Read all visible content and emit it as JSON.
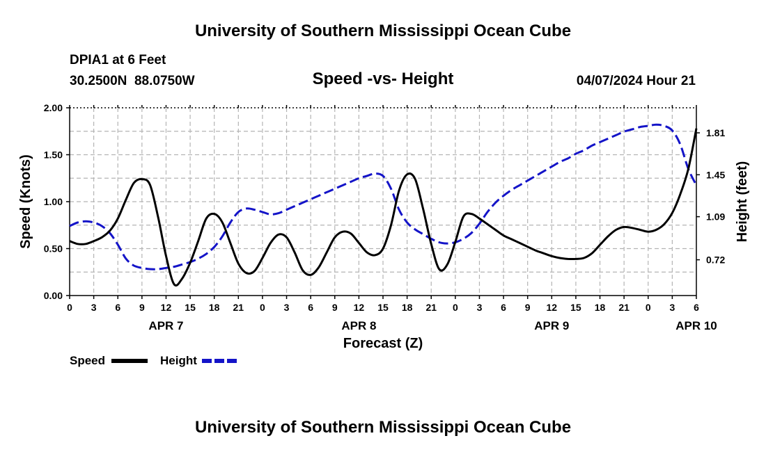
{
  "header": {
    "title": "University of Southern Mississippi Ocean Cube",
    "station_name": "DPIA1 at 6 Feet",
    "coordinates": "30.2500N  88.0750W",
    "chart_title": "Speed -vs- Height",
    "datetime": "04/07/2024 Hour 21"
  },
  "footer": {
    "title": "University of Southern Mississippi Ocean Cube"
  },
  "colors": {
    "speed": "#000000",
    "height": "#1414c8",
    "grid": "#b4b4b4"
  },
  "chart_data": {
    "type": "line",
    "title": "Speed -vs- Height",
    "xlabel": "Forecast (Z)",
    "ylabel_left": "Speed (Knots)",
    "ylabel_right": "Height (feet)",
    "x_range_hours": [
      0,
      78
    ],
    "ylim_left": [
      0,
      2.0
    ],
    "ylim_right_ft": [
      0.413,
      2.025
    ],
    "yticks_left": [
      "0.00",
      "0.50",
      "1.00",
      "1.50",
      "2.00"
    ],
    "yticks_left_values": [
      0,
      0.5,
      1.0,
      1.5,
      2.0
    ],
    "yticks_right": [
      "0.72",
      "1.09",
      "1.45",
      "1.81"
    ],
    "yticks_right_values": [
      0.72,
      1.09,
      1.45,
      1.81
    ],
    "xtick_labels": [
      "0",
      "3",
      "6",
      "9",
      "12",
      "15",
      "18",
      "21",
      "0",
      "3",
      "6",
      "9",
      "12",
      "15",
      "18",
      "21",
      "0",
      "3",
      "6",
      "9",
      "12",
      "15",
      "18",
      "21",
      "0",
      "3",
      "6"
    ],
    "day_labels": [
      {
        "label": "APR 7",
        "hour": 12
      },
      {
        "label": "APR 8",
        "hour": 36
      },
      {
        "label": "APR 9",
        "hour": 60
      },
      {
        "label": "APR 10",
        "hour": 78
      }
    ],
    "legend": [
      "Speed",
      "Height"
    ],
    "series": [
      {
        "name": "Speed",
        "x": [
          0,
          1,
          2,
          3,
          4,
          5,
          6,
          7,
          8,
          9,
          10,
          11,
          12,
          13,
          14,
          15,
          16,
          17,
          18,
          19,
          20,
          21,
          22,
          23,
          24,
          25,
          26,
          27,
          28,
          29,
          30,
          31,
          32,
          33,
          34,
          35,
          36,
          37,
          38,
          39,
          40,
          41,
          42,
          43,
          44,
          45,
          46,
          47,
          48,
          49,
          50,
          51,
          52,
          53,
          54,
          55,
          56,
          57,
          58,
          59,
          60,
          61,
          62,
          63,
          64,
          65,
          66,
          67,
          68,
          69,
          70,
          71,
          72,
          73,
          74,
          75,
          76,
          77,
          78
        ],
        "values": [
          0.58,
          0.55,
          0.55,
          0.58,
          0.62,
          0.69,
          0.82,
          1.02,
          1.2,
          1.24,
          1.18,
          0.84,
          0.42,
          0.12,
          0.18,
          0.35,
          0.58,
          0.82,
          0.87,
          0.78,
          0.56,
          0.34,
          0.24,
          0.26,
          0.4,
          0.56,
          0.65,
          0.62,
          0.46,
          0.27,
          0.22,
          0.3,
          0.46,
          0.62,
          0.68,
          0.66,
          0.56,
          0.46,
          0.43,
          0.5,
          0.75,
          1.12,
          1.29,
          1.24,
          0.92,
          0.55,
          0.28,
          0.33,
          0.57,
          0.84,
          0.87,
          0.82,
          0.76,
          0.7,
          0.64,
          0.6,
          0.56,
          0.52,
          0.48,
          0.45,
          0.42,
          0.4,
          0.39,
          0.39,
          0.4,
          0.45,
          0.54,
          0.63,
          0.7,
          0.73,
          0.72,
          0.7,
          0.68,
          0.7,
          0.76,
          0.88,
          1.08,
          1.35,
          1.78
        ]
      },
      {
        "name": "Height",
        "x": [
          0,
          1,
          2,
          3,
          4,
          5,
          6,
          7,
          8,
          9,
          10,
          11,
          12,
          13,
          14,
          15,
          16,
          17,
          18,
          19,
          20,
          21,
          22,
          23,
          24,
          25,
          26,
          27,
          28,
          29,
          30,
          31,
          32,
          33,
          34,
          35,
          36,
          37,
          38,
          39,
          40,
          41,
          42,
          43,
          44,
          45,
          46,
          47,
          48,
          49,
          50,
          51,
          52,
          53,
          54,
          55,
          56,
          57,
          58,
          59,
          60,
          61,
          62,
          63,
          64,
          65,
          66,
          67,
          68,
          69,
          70,
          71,
          72,
          73,
          74,
          75,
          76,
          77,
          78
        ],
        "values": [
          1.01,
          1.04,
          1.05,
          1.04,
          1.01,
          0.95,
          0.85,
          0.73,
          0.67,
          0.65,
          0.64,
          0.64,
          0.65,
          0.66,
          0.68,
          0.7,
          0.73,
          0.77,
          0.83,
          0.92,
          1.04,
          1.13,
          1.16,
          1.15,
          1.13,
          1.11,
          1.12,
          1.15,
          1.18,
          1.21,
          1.24,
          1.27,
          1.3,
          1.33,
          1.36,
          1.39,
          1.42,
          1.44,
          1.46,
          1.44,
          1.33,
          1.15,
          1.04,
          0.98,
          0.94,
          0.9,
          0.87,
          0.86,
          0.87,
          0.9,
          0.95,
          1.03,
          1.13,
          1.21,
          1.27,
          1.32,
          1.36,
          1.4,
          1.44,
          1.48,
          1.52,
          1.56,
          1.59,
          1.63,
          1.66,
          1.7,
          1.73,
          1.76,
          1.79,
          1.82,
          1.84,
          1.86,
          1.87,
          1.88,
          1.87,
          1.83,
          1.71,
          1.5,
          1.36
        ]
      }
    ]
  }
}
